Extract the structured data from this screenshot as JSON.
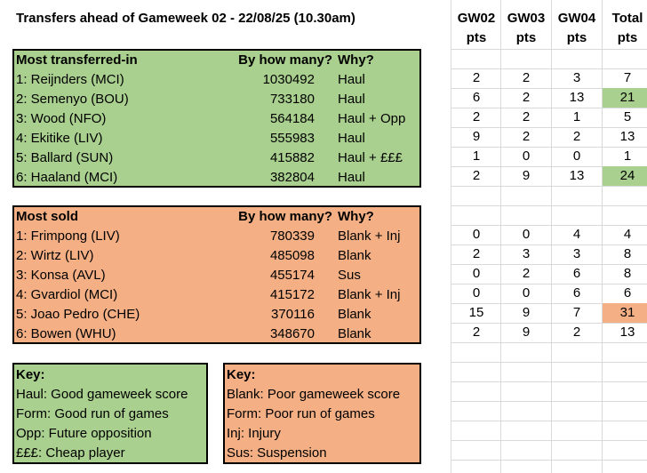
{
  "title": "Transfers ahead of Gameweek 02 - 22/08/25 (10.30am)",
  "pts_headers": [
    {
      "top": "GW02",
      "bottom": "pts"
    },
    {
      "top": "GW03",
      "bottom": "pts"
    },
    {
      "top": "GW04",
      "bottom": "pts"
    },
    {
      "top": "Total",
      "bottom": "pts"
    }
  ],
  "transferred_in": {
    "header": {
      "name": "Most transferred-in",
      "count": "By how many?",
      "why": "Why?"
    },
    "rows": [
      {
        "name": "1: Reijnders (MCI)",
        "count": "1030492",
        "why": "Haul",
        "pts": [
          "2",
          "2",
          "3",
          "7"
        ],
        "highlight": ""
      },
      {
        "name": "2: Semenyo (BOU)",
        "count": "733180",
        "why": "Haul",
        "pts": [
          "6",
          "2",
          "13",
          "21"
        ],
        "highlight": "green"
      },
      {
        "name": "3: Wood (NFO)",
        "count": "564184",
        "why": "Haul + Opp",
        "pts": [
          "2",
          "2",
          "1",
          "5"
        ],
        "highlight": ""
      },
      {
        "name": "4: Ekitike (LIV)",
        "count": "555983",
        "why": "Haul",
        "pts": [
          "9",
          "2",
          "2",
          "13"
        ],
        "highlight": ""
      },
      {
        "name": "5: Ballard (SUN)",
        "count": "415882",
        "why": "Haul + £££",
        "pts": [
          "1",
          "0",
          "0",
          "1"
        ],
        "highlight": ""
      },
      {
        "name": "6: Haaland (MCI)",
        "count": "382804",
        "why": "Haul",
        "pts": [
          "2",
          "9",
          "13",
          "24"
        ],
        "highlight": "green"
      }
    ]
  },
  "sold": {
    "header": {
      "name": "Most sold",
      "count": "By how many?",
      "why": "Why?"
    },
    "rows": [
      {
        "name": "1: Frimpong (LIV)",
        "count": "780339",
        "why": "Blank + Inj",
        "pts": [
          "0",
          "0",
          "4",
          "4"
        ],
        "highlight": ""
      },
      {
        "name": "2: Wirtz (LIV)",
        "count": "485098",
        "why": "Blank",
        "pts": [
          "2",
          "3",
          "3",
          "8"
        ],
        "highlight": ""
      },
      {
        "name": "3: Konsa (AVL)",
        "count": "455174",
        "why": "Sus",
        "pts": [
          "0",
          "2",
          "6",
          "8"
        ],
        "highlight": ""
      },
      {
        "name": "4: Gvardiol (MCI)",
        "count": "415172",
        "why": "Blank + Inj",
        "pts": [
          "0",
          "0",
          "6",
          "6"
        ],
        "highlight": ""
      },
      {
        "name": "5: Joao Pedro (CHE)",
        "count": "370116",
        "why": "Blank",
        "pts": [
          "15",
          "9",
          "7",
          "31"
        ],
        "highlight": "orange"
      },
      {
        "name": "6: Bowen (WHU)",
        "count": "348670",
        "why": "Blank",
        "pts": [
          "2",
          "9",
          "2",
          "13"
        ],
        "highlight": ""
      }
    ]
  },
  "key_green": {
    "title": "Key:",
    "lines": [
      "Haul: Good gameweek score",
      "Form: Good run of games",
      "Opp: Future opposition",
      "£££: Cheap player"
    ]
  },
  "key_orange": {
    "title": "Key:",
    "lines": [
      "Blank: Poor gameweek score",
      "Form: Poor run of games",
      "Inj: Injury",
      "Sus: Suspension"
    ]
  },
  "colors": {
    "green": "#a9d08e",
    "orange": "#f4b084",
    "grid": "#d9d9d9"
  }
}
